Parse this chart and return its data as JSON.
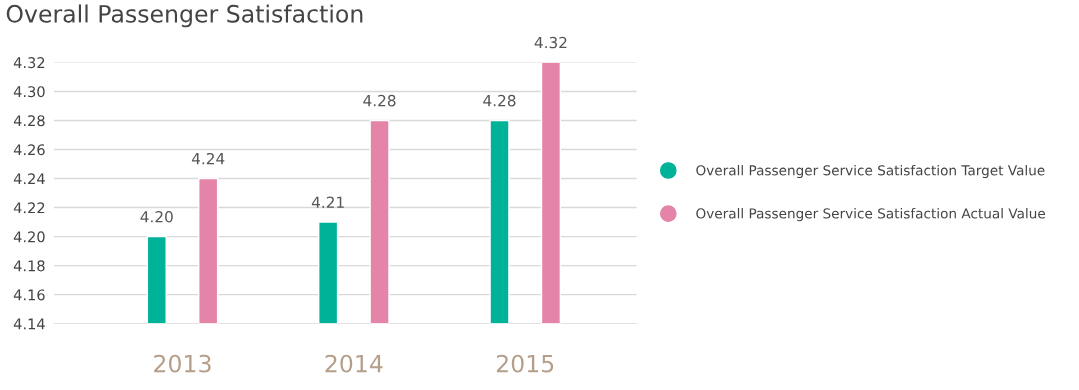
{
  "chart_data": {
    "type": "bar",
    "title": "Overall Passenger Satisfaction",
    "categories": [
      "2013",
      "2014",
      "2015"
    ],
    "series": [
      {
        "name": "Overall Passenger Service Satisfaction Target Value",
        "color": "#00b398",
        "values": [
          4.2,
          4.21,
          4.28
        ],
        "value_labels": [
          "4.20",
          "4.21",
          "4.28"
        ]
      },
      {
        "name": "Overall Passenger Service Satisfaction Actual Value",
        "color": "#e384a8",
        "values": [
          4.24,
          4.28,
          4.32
        ],
        "value_labels": [
          "4.24",
          "4.28",
          "4.32"
        ]
      }
    ],
    "ylim": [
      4.14,
      4.32
    ],
    "yticks": [
      4.14,
      4.16,
      4.18,
      {
        "value": 4.2,
        "label": "4.20"
      },
      4.22,
      4.24,
      4.26,
      4.28,
      {
        "value": 4.3,
        "label": "4.30"
      },
      4.32
    ],
    "grid": "y",
    "legend": "right"
  }
}
